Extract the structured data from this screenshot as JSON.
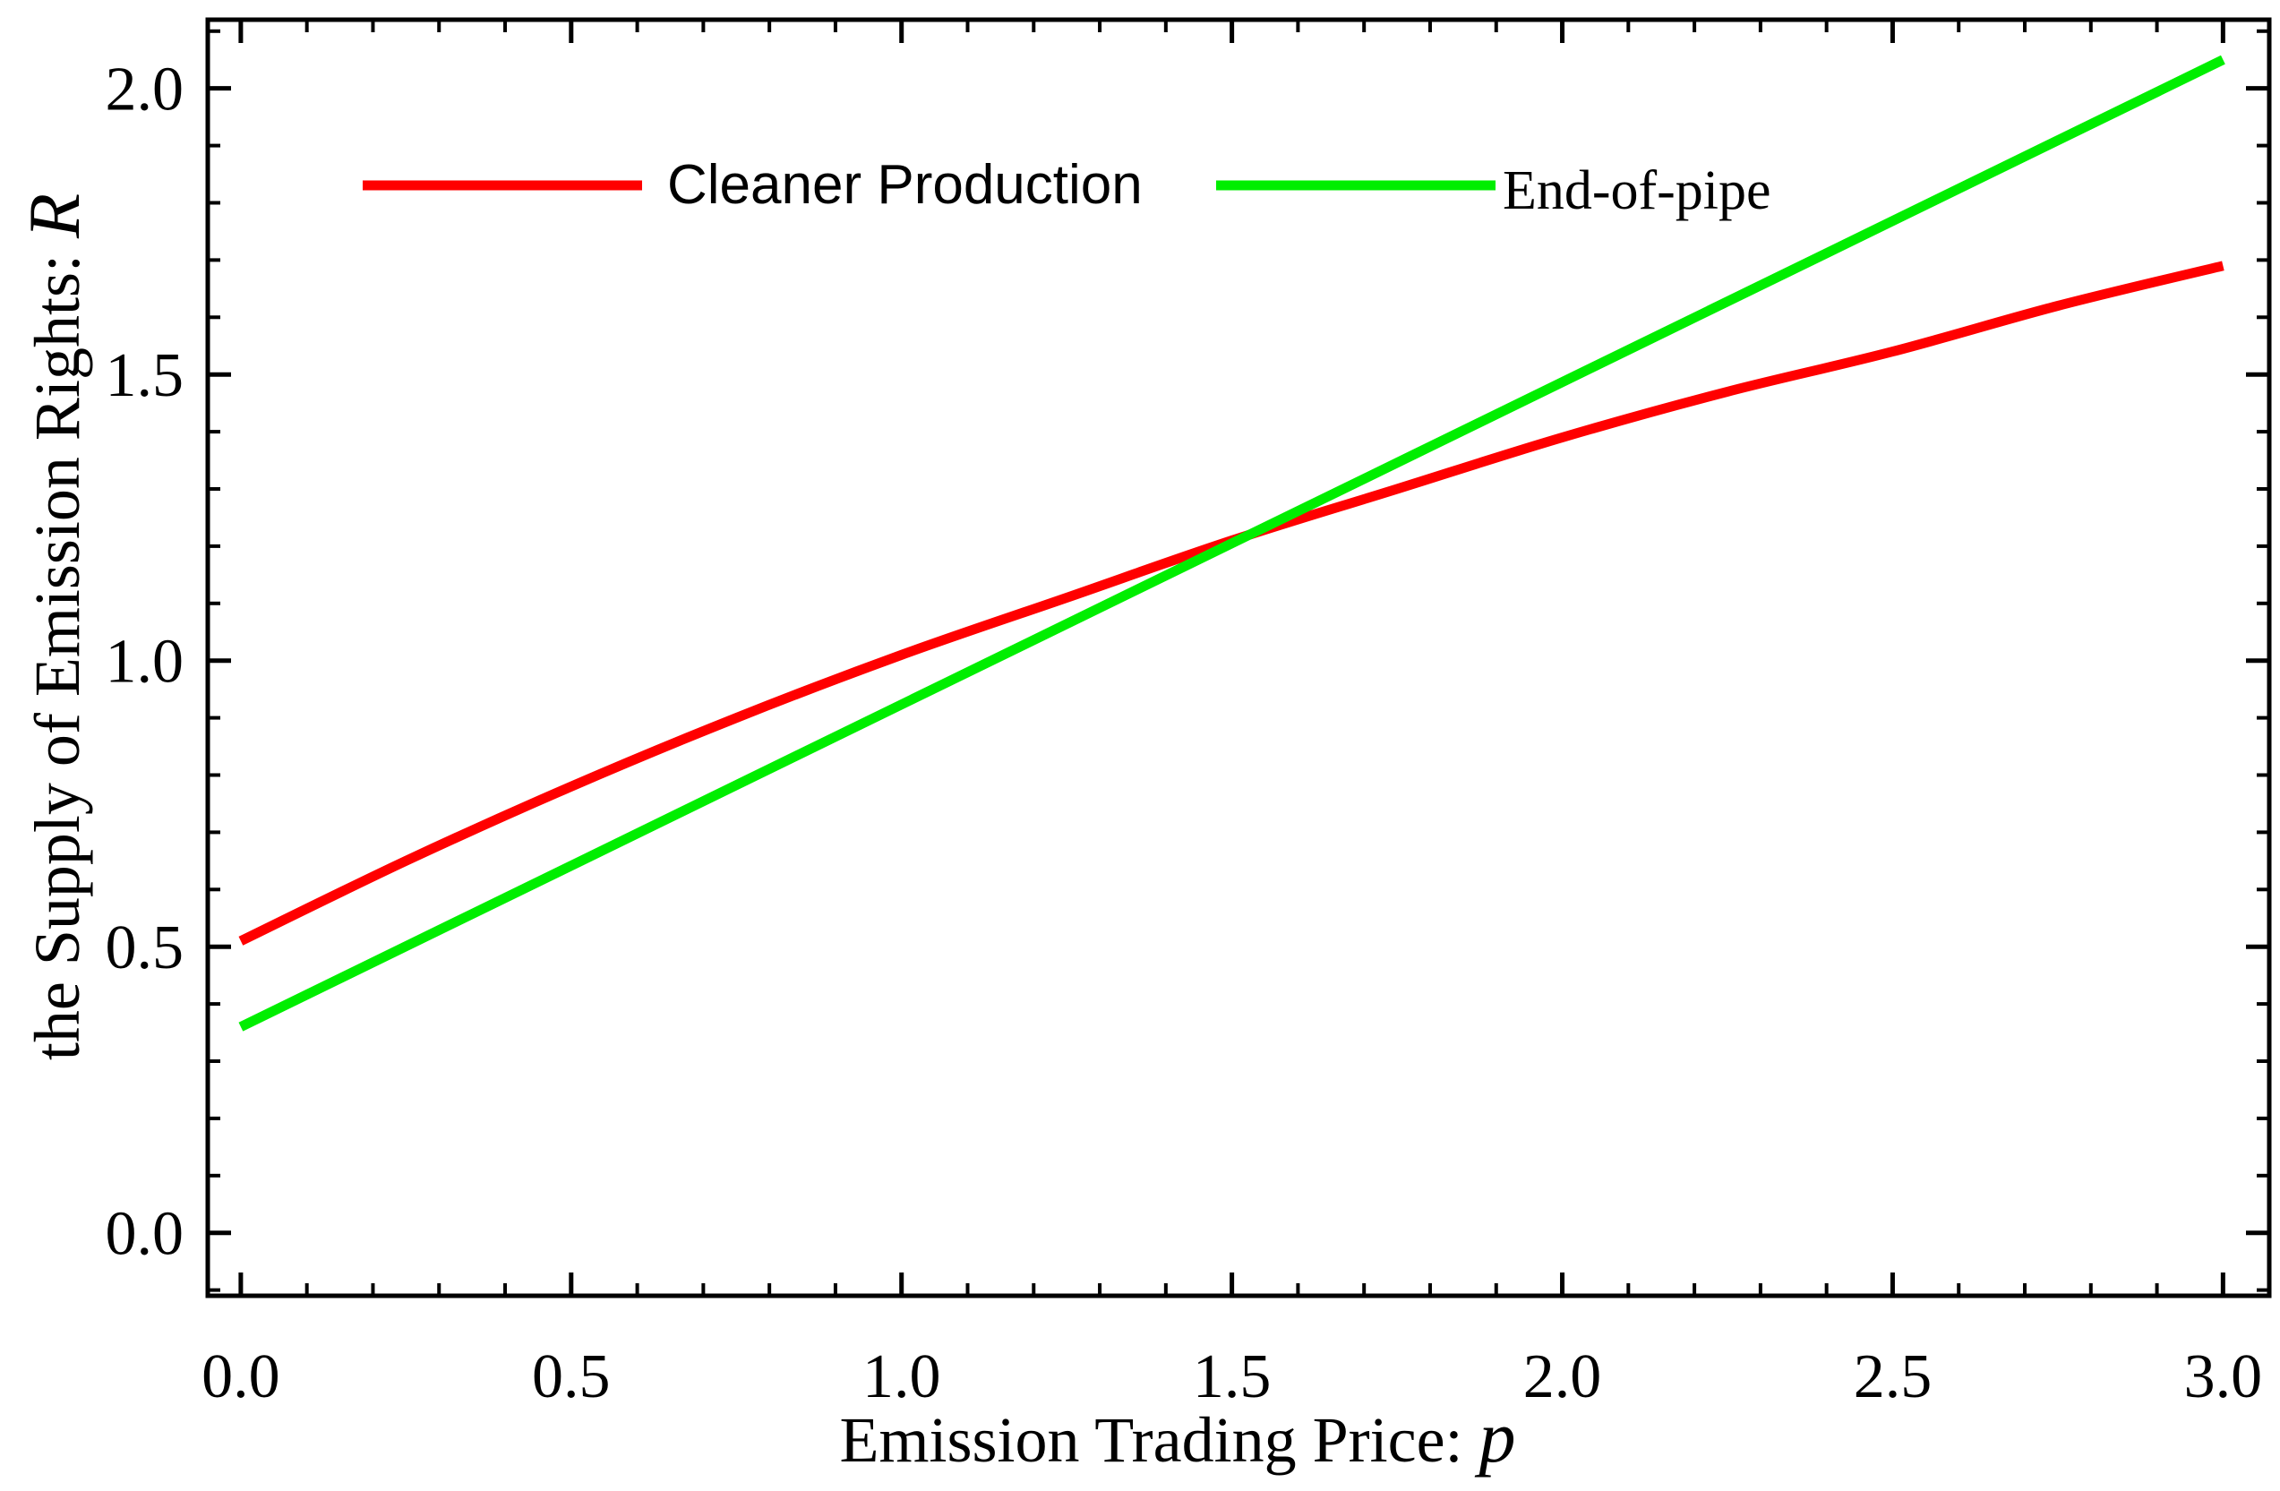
{
  "chart_data": {
    "type": "line",
    "title": "",
    "xlabel": "Emission Trading Price: ",
    "xlabel_var": "p",
    "ylabel": "the Supply of  Emission Rights: ",
    "ylabel_var": "R",
    "xlim": [
      -0.05,
      3.07
    ],
    "ylim": [
      -0.11,
      2.12
    ],
    "x_ticks": [
      {
        "value": 0.0,
        "label": "0.0"
      },
      {
        "value": 0.5,
        "label": "0.5"
      },
      {
        "value": 1.0,
        "label": "1.0"
      },
      {
        "value": 1.5,
        "label": "1.5"
      },
      {
        "value": 2.0,
        "label": "2.0"
      },
      {
        "value": 2.5,
        "label": "2.5"
      },
      {
        "value": 3.0,
        "label": "3.0"
      }
    ],
    "y_ticks": [
      {
        "value": 0.0,
        "label": "0.0"
      },
      {
        "value": 0.5,
        "label": "0.5"
      },
      {
        "value": 1.0,
        "label": "1.0"
      },
      {
        "value": 1.5,
        "label": "1.5"
      },
      {
        "value": 2.0,
        "label": "2.0"
      }
    ],
    "x_minor_step": 0.1,
    "y_minor_step": 0.1,
    "grid": false,
    "legend_position": "top-left",
    "series": [
      {
        "name": "Cleaner Production",
        "color": "#ff0000",
        "x": [
          0.0,
          0.25,
          0.5,
          0.75,
          1.0,
          1.25,
          1.5,
          1.75,
          2.0,
          2.25,
          2.5,
          2.75,
          3.0
        ],
        "y": [
          0.51,
          0.65,
          0.78,
          0.9,
          1.01,
          1.11,
          1.21,
          1.3,
          1.39,
          1.47,
          1.54,
          1.62,
          1.69
        ]
      },
      {
        "name": "End-of-pipe",
        "color": "#00ee00",
        "x": [
          0.0,
          3.0
        ],
        "y": [
          0.36,
          2.05
        ]
      }
    ]
  }
}
